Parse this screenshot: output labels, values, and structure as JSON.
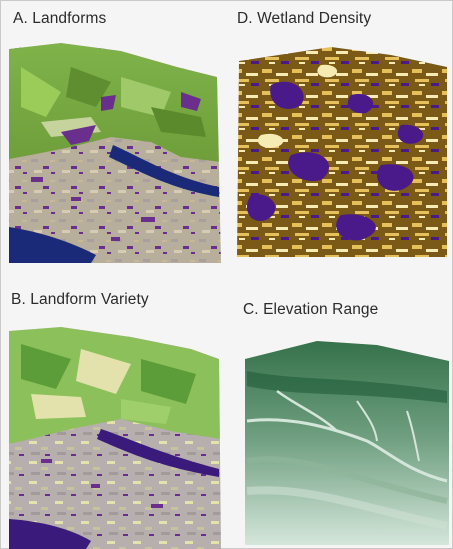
{
  "figure": {
    "panels": [
      {
        "id": "A",
        "title": "A. Landforms",
        "palette": [
          "#6f9e3a",
          "#8cc04a",
          "#b8c79a",
          "#c9b79a",
          "#a99f9e",
          "#6a2f8c"
        ],
        "water_color": "#1b2a78"
      },
      {
        "id": "D",
        "title": "D. Wetland Density",
        "palette": [
          "#7a5a16",
          "#e6c15b",
          "#f7ebb4",
          "#4b1a8a"
        ]
      },
      {
        "id": "B",
        "title": "B. Landform Variety",
        "palette": [
          "#5c9d3a",
          "#9fcf6a",
          "#e3e2ad",
          "#b7aeae",
          "#6a2f8c"
        ],
        "water_color": "#3a1a7a"
      },
      {
        "id": "C",
        "title": "C. Elevation Range",
        "palette": [
          "#1f5c38",
          "#3f7f55",
          "#8fb59a",
          "#d4e6da"
        ]
      }
    ]
  }
}
